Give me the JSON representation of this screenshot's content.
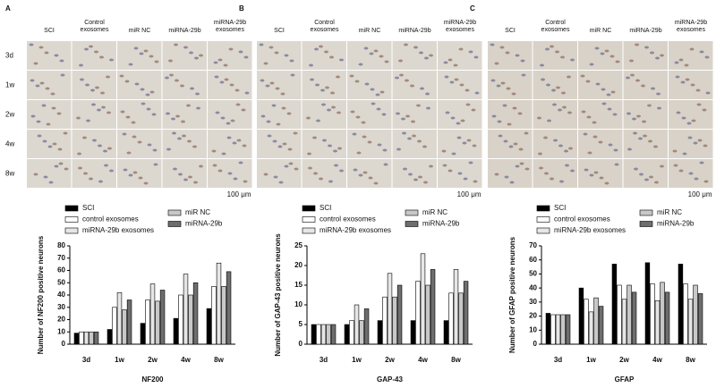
{
  "panels": [
    {
      "label": "A",
      "columns": [
        "SCI",
        "Control exosomes",
        "miR NC",
        "miRNA-29b",
        "miRNA-29b exosomes"
      ],
      "scale_bar": "100 μm"
    },
    {
      "label": "B",
      "columns": [
        "SCI",
        "Control exosomes",
        "miR NC",
        "miRNA-29b",
        "miRNA-29b exosomes"
      ],
      "scale_bar": "100 μm"
    },
    {
      "label": "C",
      "columns": [
        "SCI",
        "Control exosomes",
        "miR NC",
        "miRNA-29b",
        "miRNA-29b exosomes"
      ],
      "scale_bar": "100 μm"
    }
  ],
  "rows": [
    "3d",
    "1w",
    "2w",
    "4w",
    "8w"
  ],
  "chart_data": [
    {
      "type": "bar",
      "xlabel": "NF200",
      "ylabel": "Number of NF200 positive neurons",
      "categories": [
        "3d",
        "1w",
        "2w",
        "4w",
        "8w"
      ],
      "series": [
        {
          "name": "SCI",
          "color": "#000000",
          "values": [
            9,
            12,
            17,
            21,
            29
          ]
        },
        {
          "name": "control exosomes",
          "color": "#ffffff",
          "values": [
            10,
            30,
            36,
            40,
            47
          ]
        },
        {
          "name": "miRNA-29b exosomes",
          "color": "#e6e6e6",
          "values": [
            10,
            42,
            49,
            57,
            66
          ]
        },
        {
          "name": "miR NC",
          "color": "#c8c8c8",
          "values": [
            10,
            28,
            35,
            40,
            47
          ]
        },
        {
          "name": "miRNA-29b",
          "color": "#6e6e6e",
          "values": [
            10,
            36,
            44,
            50,
            59
          ]
        }
      ],
      "ylim": [
        0,
        80
      ],
      "yticks": [
        0,
        10,
        20,
        30,
        40,
        50,
        60,
        70,
        80
      ]
    },
    {
      "type": "bar",
      "xlabel": "GAP-43",
      "ylabel": "Number of GAP-43 positive neurons",
      "categories": [
        "3d",
        "1w",
        "2w",
        "4w",
        "8w"
      ],
      "series": [
        {
          "name": "SCI",
          "color": "#000000",
          "values": [
            5,
            5,
            6,
            6,
            6
          ]
        },
        {
          "name": "control exosomes",
          "color": "#ffffff",
          "values": [
            5,
            6,
            12,
            16,
            13
          ]
        },
        {
          "name": "miRNA-29b exosomes",
          "color": "#e6e6e6",
          "values": [
            5,
            10,
            18,
            23,
            19
          ]
        },
        {
          "name": "miR NC",
          "color": "#c8c8c8",
          "values": [
            5,
            6,
            12,
            15,
            13
          ]
        },
        {
          "name": "miRNA-29b",
          "color": "#6e6e6e",
          "values": [
            5,
            9,
            15,
            19,
            16
          ]
        }
      ],
      "ylim": [
        0,
        25
      ],
      "yticks": [
        0,
        5,
        10,
        15,
        20,
        25
      ]
    },
    {
      "type": "bar",
      "xlabel": "GFAP",
      "ylabel": "Number of GFAP positive neurons",
      "categories": [
        "3d",
        "1w",
        "2w",
        "4w",
        "8w"
      ],
      "series": [
        {
          "name": "SCI",
          "color": "#000000",
          "values": [
            22,
            40,
            57,
            58,
            57
          ]
        },
        {
          "name": "control exosomes",
          "color": "#ffffff",
          "values": [
            21,
            32,
            42,
            43,
            43
          ]
        },
        {
          "name": "miRNA-29b exosomes",
          "color": "#e6e6e6",
          "values": [
            21,
            23,
            32,
            31,
            32
          ]
        },
        {
          "name": "miR NC",
          "color": "#c8c8c8",
          "values": [
            21,
            33,
            42,
            44,
            42
          ]
        },
        {
          "name": "miRNA-29b",
          "color": "#6e6e6e",
          "values": [
            21,
            27,
            37,
            37,
            36
          ]
        }
      ],
      "ylim": [
        0,
        70
      ],
      "yticks": [
        0,
        10,
        20,
        30,
        40,
        50,
        60,
        70
      ]
    }
  ]
}
